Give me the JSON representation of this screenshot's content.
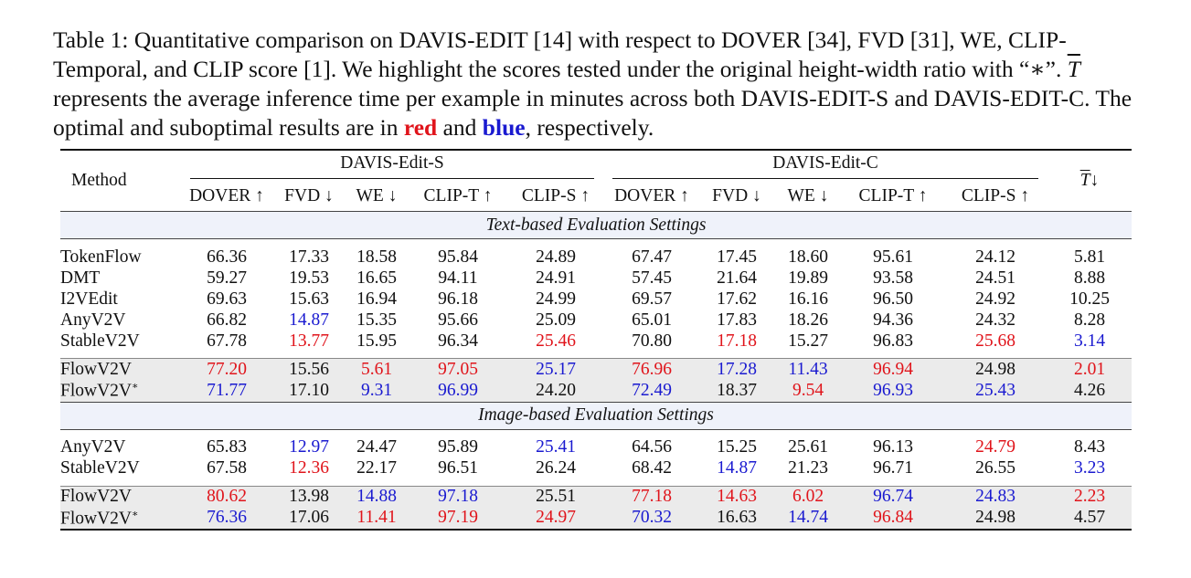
{
  "caption": {
    "part1": "Table 1: Quantitative comparison on DAVIS-EDIT [14] with respect to DOVER [34], FVD [31], WE, CLIP-Temporal, and CLIP score [1]. We highlight the scores tested under the original height-width ratio with “∗”. ",
    "tbar": "T",
    "part2": " represents the average inference time per example in minutes across both DAVIS-EDIT-S and DAVIS-EDIT-C. The optimal and suboptimal results are in ",
    "red_word": "red",
    "and_word": " and ",
    "blue_word": "blue",
    "part3": ", respectively."
  },
  "table": {
    "method_header": "Method",
    "group_s": "DAVIS-Edit-S",
    "group_c": "DAVIS-Edit-C",
    "time_header": "T̄↓",
    "metrics": [
      "DOVER ↑",
      "FVD ↓",
      "WE ↓",
      "CLIP-T ↑",
      "CLIP-S ↑",
      "DOVER ↑",
      "FVD ↓",
      "WE ↓",
      "CLIP-T ↑",
      "CLIP-S ↑"
    ],
    "sections": [
      {
        "title": "Text-based Evaluation Settings",
        "baselines": [
          {
            "method": "TokenFlow",
            "cells": [
              [
                "66.36",
                ""
              ],
              [
                "17.33",
                ""
              ],
              [
                "18.58",
                ""
              ],
              [
                "95.84",
                ""
              ],
              [
                "24.89",
                ""
              ],
              [
                "67.47",
                ""
              ],
              [
                "17.45",
                ""
              ],
              [
                "18.60",
                ""
              ],
              [
                "95.61",
                ""
              ],
              [
                "24.12",
                ""
              ],
              [
                "5.81",
                ""
              ]
            ]
          },
          {
            "method": "DMT",
            "cells": [
              [
                "59.27",
                ""
              ],
              [
                "19.53",
                ""
              ],
              [
                "16.65",
                ""
              ],
              [
                "94.11",
                ""
              ],
              [
                "24.91",
                ""
              ],
              [
                "57.45",
                ""
              ],
              [
                "21.64",
                ""
              ],
              [
                "19.89",
                ""
              ],
              [
                "93.58",
                ""
              ],
              [
                "24.51",
                ""
              ],
              [
                "8.88",
                ""
              ]
            ]
          },
          {
            "method": "I2VEdit",
            "cells": [
              [
                "69.63",
                ""
              ],
              [
                "15.63",
                ""
              ],
              [
                "16.94",
                ""
              ],
              [
                "96.18",
                ""
              ],
              [
                "24.99",
                ""
              ],
              [
                "69.57",
                ""
              ],
              [
                "17.62",
                ""
              ],
              [
                "16.16",
                ""
              ],
              [
                "96.50",
                ""
              ],
              [
                "24.92",
                ""
              ],
              [
                "10.25",
                ""
              ]
            ]
          },
          {
            "method": "AnyV2V",
            "cells": [
              [
                "66.82",
                ""
              ],
              [
                "14.87",
                "blue"
              ],
              [
                "15.35",
                ""
              ],
              [
                "95.66",
                ""
              ],
              [
                "25.09",
                ""
              ],
              [
                "65.01",
                ""
              ],
              [
                "17.83",
                ""
              ],
              [
                "18.26",
                ""
              ],
              [
                "94.36",
                ""
              ],
              [
                "24.32",
                ""
              ],
              [
                "8.28",
                ""
              ]
            ]
          },
          {
            "method": "StableV2V",
            "cells": [
              [
                "67.78",
                ""
              ],
              [
                "13.77",
                "red"
              ],
              [
                "15.95",
                ""
              ],
              [
                "96.34",
                ""
              ],
              [
                "25.46",
                "red"
              ],
              [
                "70.80",
                ""
              ],
              [
                "17.18",
                "red"
              ],
              [
                "15.27",
                ""
              ],
              [
                "96.83",
                ""
              ],
              [
                "25.68",
                "red"
              ],
              [
                "3.14",
                "blue"
              ]
            ]
          }
        ],
        "flow": [
          {
            "method": "FlowV2V",
            "sup": "",
            "cells": [
              [
                "77.20",
                "red"
              ],
              [
                "15.56",
                ""
              ],
              [
                "5.61",
                "red"
              ],
              [
                "97.05",
                "red"
              ],
              [
                "25.17",
                "blue"
              ],
              [
                "76.96",
                "red"
              ],
              [
                "17.28",
                "blue"
              ],
              [
                "11.43",
                "blue"
              ],
              [
                "96.94",
                "red"
              ],
              [
                "24.98",
                ""
              ],
              [
                "2.01",
                "red"
              ]
            ]
          },
          {
            "method": "FlowV2V",
            "sup": "∗",
            "cells": [
              [
                "71.77",
                "blue"
              ],
              [
                "17.10",
                ""
              ],
              [
                "9.31",
                "blue"
              ],
              [
                "96.99",
                "blue"
              ],
              [
                "24.20",
                ""
              ],
              [
                "72.49",
                "blue"
              ],
              [
                "18.37",
                ""
              ],
              [
                "9.54",
                "red"
              ],
              [
                "96.93",
                "blue"
              ],
              [
                "25.43",
                "blue"
              ],
              [
                "4.26",
                ""
              ]
            ]
          }
        ]
      },
      {
        "title": "Image-based Evaluation Settings",
        "baselines": [
          {
            "method": "AnyV2V",
            "cells": [
              [
                "65.83",
                ""
              ],
              [
                "12.97",
                "blue"
              ],
              [
                "24.47",
                ""
              ],
              [
                "95.89",
                ""
              ],
              [
                "25.41",
                "blue"
              ],
              [
                "64.56",
                ""
              ],
              [
                "15.25",
                ""
              ],
              [
                "25.61",
                ""
              ],
              [
                "96.13",
                ""
              ],
              [
                "24.79",
                "red"
              ],
              [
                "8.43",
                ""
              ]
            ]
          },
          {
            "method": "StableV2V",
            "cells": [
              [
                "67.58",
                ""
              ],
              [
                "12.36",
                "red"
              ],
              [
                "22.17",
                ""
              ],
              [
                "96.51",
                ""
              ],
              [
                "26.24",
                ""
              ],
              [
                "68.42",
                ""
              ],
              [
                "14.87",
                "blue"
              ],
              [
                "21.23",
                ""
              ],
              [
                "96.71",
                ""
              ],
              [
                "26.55",
                ""
              ],
              [
                "3.23",
                "blue"
              ]
            ]
          }
        ],
        "flow": [
          {
            "method": "FlowV2V",
            "sup": "",
            "cells": [
              [
                "80.62",
                "red"
              ],
              [
                "13.98",
                ""
              ],
              [
                "14.88",
                "blue"
              ],
              [
                "97.18",
                "blue"
              ],
              [
                "25.51",
                ""
              ],
              [
                "77.18",
                "red"
              ],
              [
                "14.63",
                "red"
              ],
              [
                "6.02",
                "red"
              ],
              [
                "96.74",
                "blue"
              ],
              [
                "24.83",
                "blue"
              ],
              [
                "2.23",
                "red"
              ]
            ]
          },
          {
            "method": "FlowV2V",
            "sup": "∗",
            "cells": [
              [
                "76.36",
                "blue"
              ],
              [
                "17.06",
                ""
              ],
              [
                "11.41",
                "red"
              ],
              [
                "97.19",
                "red"
              ],
              [
                "24.97",
                "red"
              ],
              [
                "70.32",
                "blue"
              ],
              [
                "16.63",
                ""
              ],
              [
                "14.74",
                "blue"
              ],
              [
                "96.84",
                "red"
              ],
              [
                "24.98",
                ""
              ],
              [
                "4.57",
                ""
              ]
            ]
          }
        ]
      }
    ]
  }
}
